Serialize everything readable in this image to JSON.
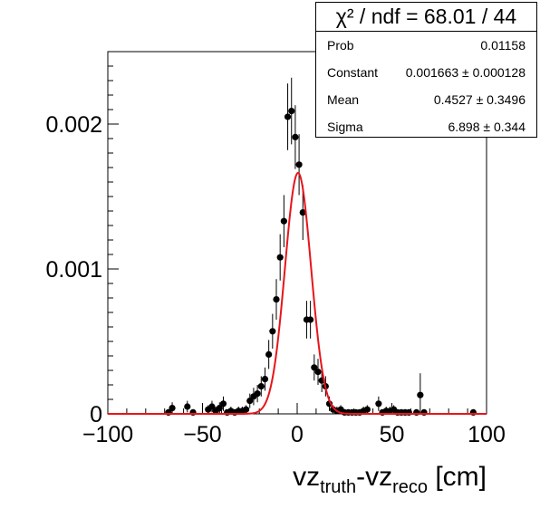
{
  "chart_data": {
    "type": "scatter",
    "title": "",
    "xlabel": "vz_truth-vz_reco [cm]",
    "xlabel_parts": {
      "a": "vz",
      "a_sub": "truth",
      "mid": "-vz",
      "b_sub": "reco",
      "unit": " [cm]"
    },
    "ylabel": "",
    "xlim": [
      -100,
      100
    ],
    "ylim": [
      0,
      0.0025
    ],
    "x_ticks": [
      -100,
      -50,
      0,
      50,
      100
    ],
    "x_tick_labels": [
      "−100",
      "−50",
      "0",
      "50",
      "100"
    ],
    "y_ticks": [
      0,
      0.001,
      0.002
    ],
    "y_tick_labels": [
      "0",
      "0.001",
      "0.002"
    ],
    "grid": false,
    "series": [
      {
        "kind": "points_with_errors",
        "color": "#000000",
        "x": [
          -68,
          -66,
          -58,
          -55,
          -47,
          -45,
          -43,
          -41,
          -39,
          -37,
          -35,
          -33,
          -31,
          -29,
          -27,
          -25,
          -23,
          -21,
          -19,
          -17,
          -15,
          -13,
          -11,
          -9,
          -7,
          -5,
          -3,
          -1,
          1,
          3,
          5,
          7,
          9,
          11,
          13,
          15,
          17,
          19,
          21,
          23,
          25,
          27,
          29,
          31,
          33,
          35,
          37,
          43,
          45,
          47,
          49,
          51,
          53,
          55,
          57,
          59,
          63,
          65,
          67,
          93
        ],
        "y": [
          1e-05,
          4e-05,
          5e-05,
          1e-05,
          3e-05,
          5e-05,
          2e-05,
          4e-05,
          7e-05,
          1e-05,
          2e-05,
          1e-05,
          2e-05,
          2e-05,
          3e-05,
          9e-05,
          0.00012,
          0.00014,
          0.00019,
          0.00024,
          0.00041,
          0.00057,
          0.00079,
          0.00108,
          0.00133,
          0.00205,
          0.00209,
          0.00191,
          0.00172,
          0.00139,
          0.00065,
          0.00065,
          0.00032,
          0.00029,
          0.00023,
          0.00019,
          7e-05,
          3e-05,
          2e-05,
          3e-05,
          1e-05,
          1e-05,
          1e-05,
          1e-05,
          1e-05,
          2e-05,
          3e-05,
          7e-05,
          1e-05,
          2e-05,
          2e-05,
          3e-05,
          1e-05,
          1e-05,
          1e-05,
          1e-05,
          1e-05,
          0.00013,
          1e-05,
          1e-05
        ],
        "yerr": [
          2e-05,
          4e-05,
          4e-05,
          2e-05,
          3e-05,
          4e-05,
          3e-05,
          4e-05,
          5e-05,
          2e-05,
          3e-05,
          2e-05,
          3e-05,
          3e-05,
          3e-05,
          5e-05,
          6e-05,
          6e-05,
          7e-05,
          8e-05,
          0.0001,
          0.00012,
          0.00014,
          0.00016,
          0.00018,
          0.00023,
          0.00023,
          0.00022,
          0.00021,
          0.00019,
          0.00013,
          0.00013,
          9e-05,
          9e-05,
          8e-05,
          7e-05,
          5e-05,
          3e-05,
          3e-05,
          3e-05,
          2e-05,
          2e-05,
          2e-05,
          2e-05,
          2e-05,
          3e-05,
          3e-05,
          5e-05,
          2e-05,
          3e-05,
          3e-05,
          3e-05,
          2e-05,
          2e-05,
          2e-05,
          2e-05,
          2e-05,
          0.00015,
          2e-05,
          2e-05
        ]
      },
      {
        "kind": "gaussian_fit",
        "color": "#e8141a",
        "constant": 0.001663,
        "mean": 0.4527,
        "sigma": 6.898
      }
    ]
  },
  "stats": {
    "header": "χ² / ndf = 68.01 / 44",
    "rows": [
      {
        "key": "Prob",
        "value": "0.01158"
      },
      {
        "key": "Constant",
        "value": "0.001663 ± 0.000128"
      },
      {
        "key": "Mean",
        "value": "0.4527 ± 0.3496"
      },
      {
        "key": "Sigma",
        "value": "6.898 ± 0.344"
      }
    ]
  }
}
